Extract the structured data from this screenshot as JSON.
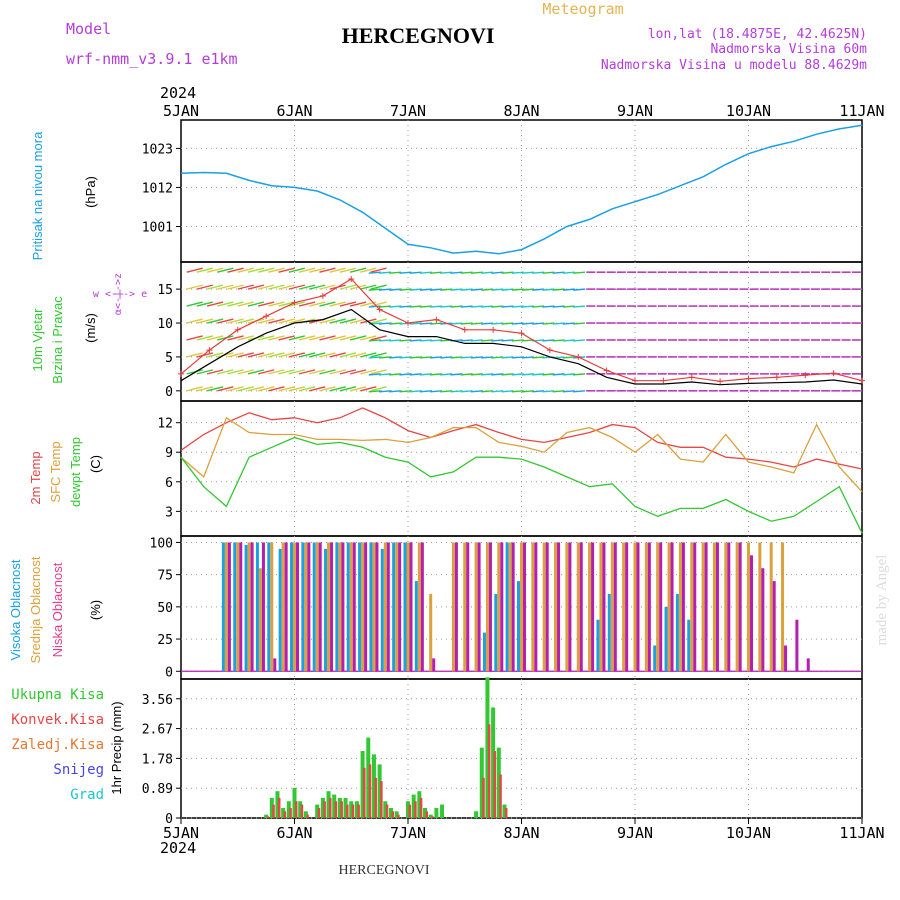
{
  "header": {
    "model_label": "Model",
    "model_name": "wrf-nmm_v3.9.1 e1km",
    "station": "HERCEGNOVI",
    "meteogram": "Meteogram",
    "lonlat": "lon,lat (18.4875E, 42.4625N)",
    "elev": "Nadmorska Visina 60m",
    "elev_model": "Nadmorska Visina u modelu 88.4629m",
    "year_top": "2024",
    "year_bottom": "2024",
    "footer_station": "HERCEGNOVI",
    "credit": "made by Angel"
  },
  "colors": {
    "pressure": "#1aa0e6",
    "wind_black": "#000000",
    "gust": "#e63c3c",
    "t2m": "#e64646",
    "tsfc": "#dca03c",
    "dew": "#32c832",
    "high_cloud": "#1aa0e6",
    "mid_cloud": "#dca03c",
    "low_cloud": "#b41eb4",
    "total_precip": "#32c832",
    "conv_precip": "#e64646",
    "frozen_precip": "#e67832",
    "snow": "#4646e6",
    "graupel": "#1ec8c8",
    "label_magenta": "#b43cdc"
  },
  "chart_data": [
    {
      "type": "line",
      "panel": "pressure",
      "ylabel": "(hPa)",
      "side_label": "Pritisak na nivou mora",
      "yticks": [
        1001,
        1012,
        1023
      ],
      "ylim": [
        991,
        1031
      ],
      "x_days": [
        0,
        0.2,
        0.4,
        0.6,
        0.8,
        1.0,
        1.2,
        1.4,
        1.6,
        1.8,
        2.0,
        2.2,
        2.4,
        2.6,
        2.8,
        3.0,
        3.2,
        3.4,
        3.6,
        3.8,
        4.0,
        4.2,
        4.4,
        4.6,
        4.8,
        5.0,
        5.2,
        5.4,
        5.6,
        5.8,
        6.0
      ],
      "values": [
        1016,
        1016.2,
        1016,
        1014,
        1012.5,
        1012,
        1011,
        1008.5,
        1005,
        1000.5,
        996,
        995,
        993.5,
        994,
        993.3,
        994.5,
        997.5,
        1001,
        1003,
        1006,
        1008,
        1010,
        1012.5,
        1015,
        1018.5,
        1021.5,
        1023.5,
        1025,
        1027,
        1028.5,
        1029.5
      ]
    },
    {
      "type": "line",
      "panel": "wind",
      "ylabel": "(m/s)",
      "side_label_1": "10m Vjetar",
      "side_label_2": "Brzina i Pravac",
      "compass_label": "w <-|-> e",
      "compass_label_2": "α<-|->z",
      "yticks": [
        0,
        5,
        10,
        15
      ],
      "ylim": [
        -1.5,
        19
      ],
      "x_days": [
        0,
        0.25,
        0.5,
        0.75,
        1.0,
        1.25,
        1.5,
        1.75,
        2.0,
        2.25,
        2.5,
        2.75,
        3.0,
        3.25,
        3.5,
        3.75,
        4.0,
        4.25,
        4.5,
        4.75,
        5.0,
        5.25,
        5.5,
        5.75,
        6.0
      ],
      "series": [
        {
          "name": "wind_speed",
          "values": [
            1.5,
            4,
            6.5,
            8.5,
            10,
            10.5,
            12,
            9,
            8,
            8,
            7,
            7,
            6.5,
            5,
            4,
            2,
            1,
            1,
            1.3,
            0.9,
            1.1,
            1.2,
            1.3,
            1.6,
            1.0
          ]
        },
        {
          "name": "gust",
          "values": [
            2.5,
            6,
            9,
            11,
            13,
            14,
            16.5,
            12,
            10,
            10.5,
            9,
            9,
            8.5,
            6,
            5,
            3,
            1.5,
            1.5,
            2,
            1.4,
            1.8,
            2,
            2.3,
            2.6,
            1.5
          ]
        }
      ]
    },
    {
      "type": "line",
      "panel": "temperature",
      "ylabel": "(C)",
      "side_label_1": "2m Temp",
      "side_label_2": "SFC Temp",
      "side_label_3": "dewpt Temp",
      "yticks": [
        3,
        6,
        9,
        12
      ],
      "ylim": [
        0.5,
        14.2
      ],
      "x_days": [
        0,
        0.2,
        0.4,
        0.6,
        0.8,
        1.0,
        1.2,
        1.4,
        1.6,
        1.8,
        2.0,
        2.2,
        2.4,
        2.6,
        2.8,
        3.0,
        3.2,
        3.4,
        3.6,
        3.8,
        4.0,
        4.2,
        4.4,
        4.6,
        4.8,
        5.0,
        5.2,
        5.4,
        5.6,
        5.8,
        6.0
      ],
      "series": [
        {
          "name": "2m Temp",
          "values": [
            9.2,
            10.8,
            12,
            13,
            12.3,
            12.5,
            12,
            12.5,
            13.5,
            12.5,
            11.2,
            10.5,
            11.2,
            11.8,
            11,
            10.3,
            10,
            10.5,
            11,
            11.8,
            11.5,
            10,
            9.5,
            9.5,
            8.5,
            8.3,
            8,
            7.5,
            8.3,
            7.8,
            7.3
          ]
        },
        {
          "name": "SFC Temp",
          "values": [
            8.5,
            6.5,
            12.5,
            11,
            10.8,
            10.8,
            10.3,
            10.3,
            10.2,
            10.3,
            10,
            10.5,
            11.5,
            11.5,
            10,
            9.6,
            9,
            11,
            11.5,
            10.5,
            9,
            10.8,
            8.3,
            8,
            10.8,
            8,
            7.5,
            6.9,
            11.8,
            7.5,
            5
          ]
        },
        {
          "name": "dewpt Temp",
          "values": [
            8.5,
            5.5,
            3.5,
            8.5,
            9.5,
            10.5,
            9.8,
            10,
            9.5,
            8.5,
            8,
            6.5,
            7,
            8.5,
            8.5,
            8.3,
            7.5,
            6.5,
            5.5,
            5.8,
            3.5,
            2.5,
            3.3,
            3.3,
            4.2,
            3,
            2,
            2.5,
            4,
            5.5,
            0.8
          ]
        }
      ]
    },
    {
      "type": "bar",
      "panel": "clouds",
      "ylabel": "(%)",
      "side_label_1": "Visoka Oblacnost",
      "side_label_2": "Srednja Oblacnost",
      "side_label_3": "Niska Oblacnost",
      "yticks": [
        0,
        25,
        50,
        75,
        100
      ],
      "ylim": [
        -6,
        105
      ],
      "x_days": [
        0.4,
        0.5,
        0.6,
        0.7,
        0.8,
        0.9,
        1.0,
        1.1,
        1.2,
        1.3,
        1.4,
        1.5,
        1.6,
        1.7,
        1.8,
        1.9,
        2.0,
        2.1,
        2.2,
        2.3,
        2.4,
        2.5,
        2.6,
        2.7,
        2.8,
        2.9,
        3.0,
        3.1,
        3.2,
        3.3,
        3.4,
        3.5,
        3.6,
        3.7,
        3.8,
        3.9,
        4.0,
        4.1,
        4.2,
        4.3,
        4.4,
        4.5,
        4.6,
        4.7,
        4.8,
        4.9,
        5.0,
        5.1,
        5.2,
        5.3,
        5.4,
        5.5,
        5.6
      ],
      "series": [
        {
          "name": "Visoka Oblacnost",
          "values": [
            100,
            100,
            98,
            100,
            100,
            95,
            100,
            100,
            100,
            95,
            100,
            100,
            100,
            100,
            95,
            100,
            100,
            70,
            0,
            0,
            0,
            0,
            0,
            30,
            60,
            100,
            70,
            0,
            0,
            0,
            0,
            0,
            0,
            40,
            60,
            0,
            0,
            0,
            20,
            50,
            60,
            40,
            0,
            0,
            0,
            0,
            0,
            0,
            0,
            0,
            0,
            0,
            0
          ]
        },
        {
          "name": "Srednja Oblacnost",
          "values": [
            100,
            100,
            100,
            80,
            100,
            100,
            100,
            100,
            100,
            100,
            100,
            100,
            100,
            100,
            100,
            100,
            100,
            100,
            60,
            0,
            100,
            100,
            100,
            100,
            100,
            100,
            100,
            100,
            100,
            100,
            100,
            100,
            100,
            100,
            100,
            100,
            100,
            100,
            100,
            100,
            100,
            100,
            100,
            100,
            100,
            100,
            100,
            100,
            100,
            100,
            0,
            0,
            0
          ]
        },
        {
          "name": "Niska Oblacnost",
          "values": [
            100,
            100,
            100,
            100,
            10,
            100,
            100,
            100,
            100,
            100,
            100,
            100,
            100,
            100,
            100,
            100,
            100,
            100,
            10,
            0,
            100,
            100,
            100,
            100,
            100,
            100,
            100,
            100,
            100,
            100,
            100,
            100,
            100,
            100,
            100,
            100,
            100,
            100,
            100,
            100,
            100,
            100,
            100,
            100,
            100,
            100,
            90,
            80,
            70,
            20,
            40,
            10,
            0
          ]
        }
      ]
    },
    {
      "type": "bar",
      "panel": "precipitation",
      "ylabel": "1hr Precip (mm)",
      "legend": [
        "Ukupna Kisa",
        "Konvek.Kisa",
        "Zaledj.Kisa",
        "Snijeg",
        "Grad"
      ],
      "yticks": [
        0,
        0.89,
        1.78,
        2.67,
        3.56
      ],
      "ylim": [
        0,
        4.15
      ],
      "x_days": [
        0.75,
        0.8,
        0.85,
        0.9,
        0.95,
        1.0,
        1.05,
        1.1,
        1.2,
        1.25,
        1.3,
        1.35,
        1.4,
        1.45,
        1.5,
        1.55,
        1.6,
        1.65,
        1.7,
        1.75,
        1.8,
        1.85,
        1.9,
        2.0,
        2.05,
        2.1,
        2.15,
        2.2,
        2.25,
        2.3,
        2.6,
        2.65,
        2.7,
        2.75,
        2.8,
        2.85
      ],
      "series": [
        {
          "name": "Ukupna Kisa",
          "values": [
            0.1,
            0.6,
            0.8,
            0.3,
            0.5,
            0.9,
            0.5,
            0.2,
            0.4,
            0.6,
            0.8,
            0.7,
            0.6,
            0.6,
            0.5,
            0.5,
            2,
            2.4,
            1.9,
            1.6,
            0.5,
            0.3,
            0.2,
            0.5,
            0.7,
            0.8,
            0.3,
            0.1,
            0.3,
            0.4,
            0.2,
            2.1,
            4.2,
            3.3,
            2.1,
            0.4
          ]
        },
        {
          "name": "Konvek.Kisa",
          "values": [
            0.05,
            0.4,
            0.6,
            0.2,
            0.3,
            0.5,
            0.4,
            0.1,
            0.3,
            0.5,
            0.6,
            0.5,
            0.5,
            0.4,
            0.4,
            0.4,
            1.5,
            1.6,
            1.2,
            1.1,
            0.4,
            0.2,
            0.1,
            0.4,
            0.5,
            0.6,
            0.2,
            0.05,
            0,
            0,
            0,
            1.2,
            2.8,
            2.0,
            1.3,
            0.3
          ]
        }
      ]
    }
  ],
  "x_axis": {
    "labels": [
      "5JAN",
      "6JAN",
      "7JAN",
      "8JAN",
      "9JAN",
      "10JAN",
      "11JAN"
    ]
  }
}
